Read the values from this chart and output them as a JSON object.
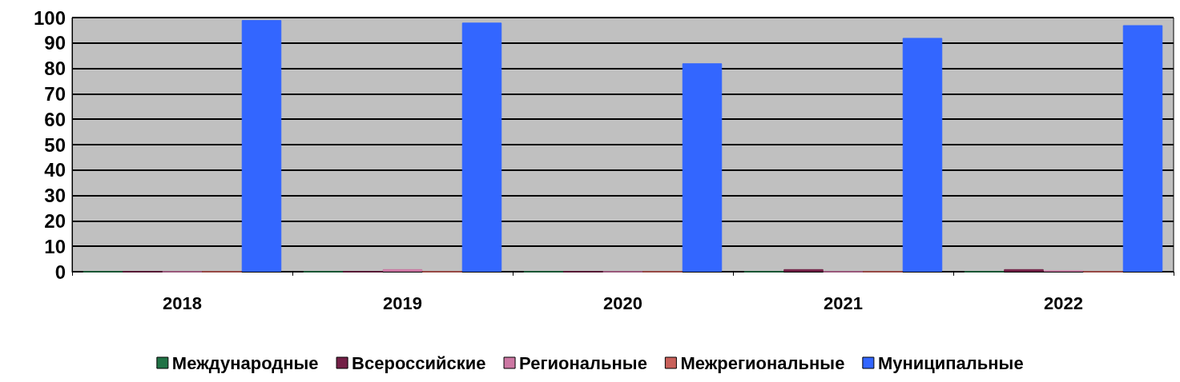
{
  "chart_data": {
    "type": "bar",
    "categories": [
      "2018",
      "2019",
      "2020",
      "2021",
      "2022"
    ],
    "series": [
      {
        "name": "Международные",
        "color": "#217346",
        "values": [
          0,
          0,
          0,
          0,
          0
        ]
      },
      {
        "name": "Всероссийские",
        "color": "#732046",
        "values": [
          0,
          0,
          0,
          1,
          1
        ]
      },
      {
        "name": "Региональные",
        "color": "#cc77a3",
        "values": [
          0,
          1,
          0,
          0,
          0.5
        ]
      },
      {
        "name": "Межрегиональные",
        "color": "#c8605a",
        "values": [
          0,
          0,
          0,
          0,
          0
        ]
      },
      {
        "name": "Муниципальные",
        "color": "#3366ff",
        "values": [
          99,
          98,
          82,
          92,
          97
        ]
      }
    ],
    "ylim": [
      0,
      100
    ],
    "yticks": [
      0,
      10,
      20,
      30,
      40,
      50,
      60,
      70,
      80,
      90,
      100
    ],
    "grid": "y",
    "legend": "bottom"
  }
}
